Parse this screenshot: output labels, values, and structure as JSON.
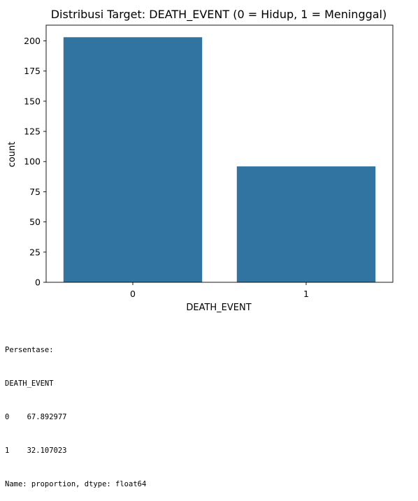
{
  "chart_data": {
    "type": "bar",
    "title": "Distribusi Target: DEATH_EVENT (0 = Hidup, 1 = Meninggal)",
    "xlabel": "DEATH_EVENT",
    "ylabel": "count",
    "categories": [
      "0",
      "1"
    ],
    "values": [
      203,
      96
    ],
    "ylim": [
      0,
      213
    ],
    "yticks": [
      0,
      25,
      50,
      75,
      100,
      125,
      150,
      175,
      200
    ],
    "grid": false,
    "bar_color": "#3274a1"
  },
  "output": {
    "lines": [
      "Persentase:",
      "DEATH_EVENT",
      "0    67.892977",
      "1    32.107023",
      "Name: proportion, dtype: float64"
    ]
  }
}
